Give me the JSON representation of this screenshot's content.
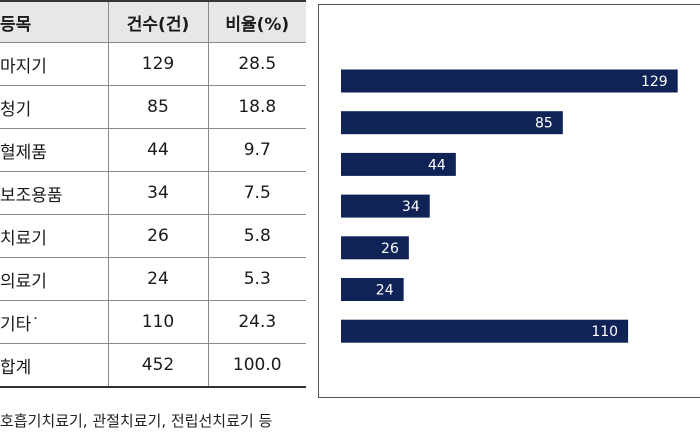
{
  "table": {
    "headers": [
      "등목",
      "건수(건)",
      "비율(%)"
    ],
    "rows": [
      {
        "name": "마지기",
        "count": "129",
        "pct": "28.5"
      },
      {
        "name": "청기",
        "count": "85",
        "pct": "18.8"
      },
      {
        "name": "혈제품",
        "count": "44",
        "pct": "9.7"
      },
      {
        "name": "보조용품",
        "count": "34",
        "pct": "7.5"
      },
      {
        "name": "치료기",
        "count": "26",
        "pct": "5.8"
      },
      {
        "name": "의료기",
        "count": "24",
        "pct": "5.3"
      },
      {
        "name": "기타˙",
        "count": "110",
        "pct": "24.3"
      },
      {
        "name": "합계",
        "count": "452",
        "pct": "100.0"
      }
    ]
  },
  "chart_data": {
    "type": "bar",
    "orientation": "horizontal",
    "categories": [
      "마지기",
      "청기",
      "혈제품",
      "보조용품",
      "치료기",
      "의료기",
      "기타˙"
    ],
    "values": [
      129,
      85,
      44,
      34,
      26,
      24,
      110
    ],
    "data_labels": [
      "129",
      "85",
      "44",
      "34",
      "26",
      "24",
      "110"
    ],
    "bar_color": "#0f2356",
    "label_color": "#ffffff",
    "grid": false
  },
  "footnote": "호흡기치료기, 관절치료기, 전립선치료기 등"
}
